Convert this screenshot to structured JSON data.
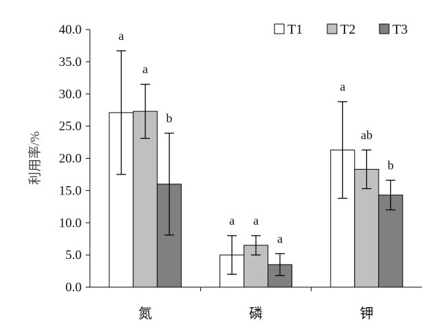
{
  "chart_data": {
    "type": "bar",
    "title": "",
    "xlabel": "",
    "ylabel": "利用率/%",
    "categories": [
      "氮",
      "磷",
      "钾"
    ],
    "ylim": [
      0,
      40
    ],
    "yticks": [
      "0.0",
      "5.0",
      "10.0",
      "15.0",
      "20.0",
      "25.0",
      "30.0",
      "35.0",
      "40.0"
    ],
    "grid": false,
    "legend_position": "top-right",
    "series": [
      {
        "name": "T1",
        "color": "#ffffff",
        "values": [
          27.1,
          5.0,
          21.3
        ],
        "errors": [
          9.6,
          3.0,
          7.5
        ],
        "labels": [
          "a",
          "a",
          "a"
        ]
      },
      {
        "name": "T2",
        "color": "#c0c0c0",
        "values": [
          27.3,
          6.5,
          18.3
        ],
        "errors": [
          4.2,
          1.5,
          3.0
        ],
        "labels": [
          "a",
          "a",
          "ab"
        ]
      },
      {
        "name": "T3",
        "color": "#808080",
        "values": [
          16.0,
          3.5,
          14.3
        ],
        "errors": [
          7.9,
          1.7,
          2.3
        ],
        "labels": [
          "b",
          "a",
          "b"
        ]
      }
    ]
  }
}
